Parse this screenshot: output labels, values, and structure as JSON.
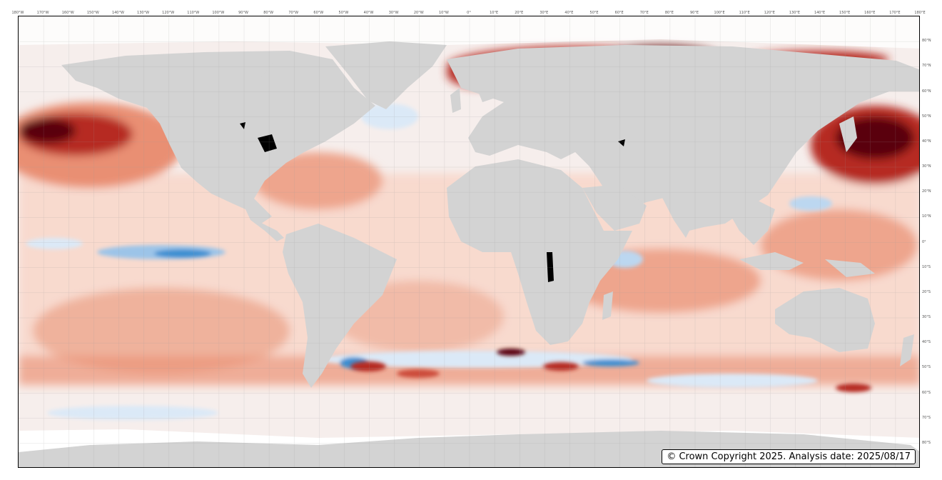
{
  "map": {
    "copyright": "© Crown Copyright 2025. Analysis date: 2025/08/17",
    "longitude_ticks": [
      "180°W",
      "170°W",
      "160°W",
      "150°W",
      "140°W",
      "130°W",
      "120°W",
      "110°W",
      "100°W",
      "90°W",
      "80°W",
      "70°W",
      "60°W",
      "50°W",
      "40°W",
      "30°W",
      "20°W",
      "10°W",
      "0°",
      "10°E",
      "20°E",
      "30°E",
      "40°E",
      "50°E",
      "60°E",
      "70°E",
      "80°E",
      "90°E",
      "100°E",
      "110°E",
      "120°E",
      "130°E",
      "140°E",
      "150°E",
      "160°E",
      "170°E",
      "180°E"
    ],
    "latitude_ticks": [
      "80°N",
      "70°N",
      "60°N",
      "50°N",
      "40°N",
      "30°N",
      "20°N",
      "10°N",
      "0°",
      "10°S",
      "20°S",
      "30°S",
      "40°S",
      "50°S",
      "60°S",
      "70°S",
      "80°S"
    ],
    "lon_range": [
      -180,
      180
    ],
    "lat_range": [
      -90,
      90
    ],
    "grid": true,
    "colors": {
      "land": "#d3d3d3",
      "ocean_neutral": "#f6eeec",
      "warm_light": "#f8d3c4",
      "warm_mid": "#e98f73",
      "warm_strong": "#b62a20",
      "warm_extreme": "#5a0008",
      "cool_light": "#dbe9f7",
      "cool_strong": "#3d8fd1",
      "sea_ice": "#ffffff",
      "lakes": "#000000"
    }
  }
}
